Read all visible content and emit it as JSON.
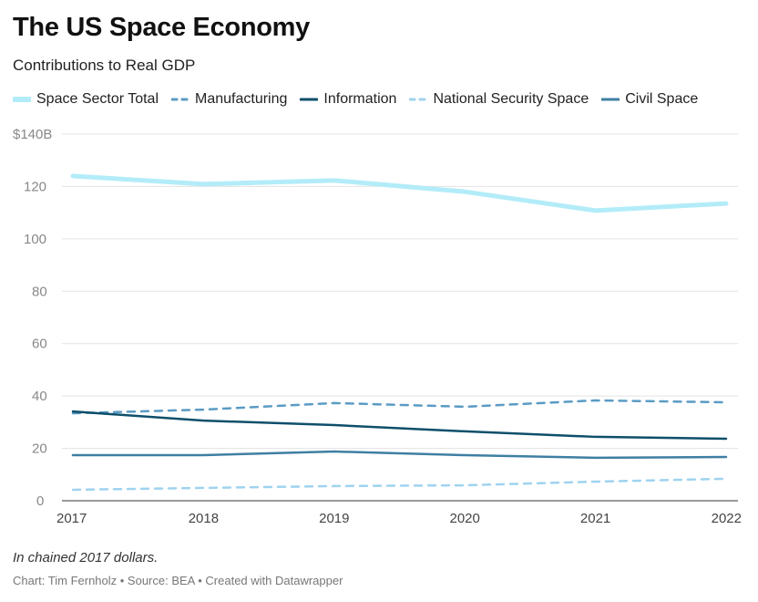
{
  "title": "The US Space Economy",
  "subtitle": "Contributions to Real GDP",
  "note": "In chained 2017 dollars.",
  "credit": "Chart: Tim Fernholz • Source: BEA • Created with Datawrapper",
  "chart_data": {
    "type": "line",
    "x": [
      "2017",
      "2018",
      "2019",
      "2020",
      "2021",
      "2022"
    ],
    "ylim": [
      0,
      140
    ],
    "yticks": [
      0,
      20,
      40,
      60,
      80,
      100,
      120,
      140
    ],
    "ytick_labels": [
      "0",
      "20",
      "40",
      "60",
      "80",
      "100",
      "120",
      "$140B"
    ],
    "grid": true,
    "legend_placement": "top",
    "series": [
      {
        "name": "Space Sector Total",
        "color": "#b3ecf9",
        "dash": false,
        "values": [
          124,
          120.9,
          122.3,
          118,
          110.8,
          113.5
        ]
      },
      {
        "name": "Manufacturing",
        "color": "#5b9bc4",
        "dash": true,
        "values": [
          33.4,
          34.8,
          37.3,
          35.9,
          38.3,
          37.6
        ]
      },
      {
        "name": "Information",
        "color": "#0e4f6b",
        "dash": false,
        "values": [
          34.1,
          30.6,
          28.9,
          26.5,
          24.4,
          23.7
        ]
      },
      {
        "name": "National Security Space",
        "color": "#9fd3ef",
        "dash": true,
        "values": [
          4.2,
          4.9,
          5.6,
          5.9,
          7.3,
          8.4
        ]
      },
      {
        "name": "Civil Space",
        "color": "#3f7fa3",
        "dash": false,
        "values": [
          17.4,
          17.4,
          18.8,
          17.4,
          16.4,
          16.7
        ]
      }
    ]
  }
}
